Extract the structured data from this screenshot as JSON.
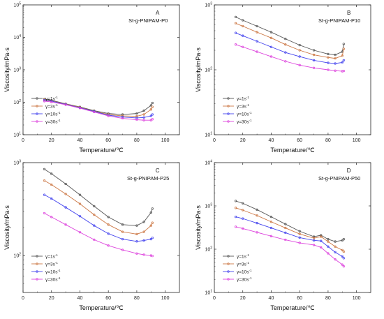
{
  "chart_data": [
    {
      "type": "line",
      "panel_letter": "A",
      "title": "St-g-PNIPAM-P0",
      "xlabel": "Temperature/℃",
      "ylabel": "Viscosity/mPa·s",
      "yscale": "log",
      "xlim": [
        0,
        110
      ],
      "ylim": [
        10,
        100000
      ],
      "xticks": [
        "0",
        "20",
        "40",
        "60",
        "80",
        "100"
      ],
      "yticks": [
        {
          "value": 10,
          "base": "10",
          "exp": "1"
        },
        {
          "value": 100,
          "base": "10",
          "exp": "2"
        },
        {
          "value": 1000,
          "base": "10",
          "exp": "3"
        },
        {
          "value": 10000,
          "base": "10",
          "exp": "4"
        },
        {
          "value": 100000,
          "base": "10",
          "exp": "5"
        }
      ],
      "legend_position": "bottom-left",
      "x": [
        15,
        20,
        30,
        40,
        50,
        60,
        70,
        80,
        85,
        90,
        91
      ],
      "series": [
        {
          "name": "γ=1s",
          "color": "#555555",
          "values": [
            125,
            115,
            90,
            72,
            55,
            45,
            42,
            45,
            55,
            80,
            95
          ]
        },
        {
          "name": "γ=3s",
          "color": "#cc7744",
          "values": [
            120,
            110,
            88,
            70,
            53,
            42,
            38,
            37,
            42,
            60,
            72
          ]
        },
        {
          "name": "γ=10s",
          "color": "#4444ee",
          "values": [
            115,
            108,
            86,
            68,
            52,
            40,
            35,
            33,
            34,
            38,
            42
          ]
        },
        {
          "name": "γ=30s",
          "color": "#dd44dd",
          "values": [
            108,
            102,
            84,
            66,
            50,
            38,
            32,
            29,
            28,
            28,
            30
          ]
        }
      ]
    },
    {
      "type": "line",
      "panel_letter": "B",
      "title": "St-g-PNIPAM-P10",
      "xlabel": "Temperature/℃",
      "ylabel": "Viscosity/mPa·s",
      "yscale": "log",
      "xlim": [
        0,
        110
      ],
      "ylim": [
        10,
        1000
      ],
      "xticks": [
        "0",
        "20",
        "40",
        "60",
        "80",
        "100"
      ],
      "yticks": [
        {
          "value": 10,
          "base": "10",
          "exp": "1"
        },
        {
          "value": 100,
          "base": "10",
          "exp": "2"
        },
        {
          "value": 1000,
          "base": "10",
          "exp": "3"
        }
      ],
      "legend_position": "bottom-left",
      "x": [
        15,
        20,
        30,
        40,
        50,
        60,
        70,
        80,
        85,
        90,
        91
      ],
      "series": [
        {
          "name": "γ=1s",
          "color": "#555555",
          "values": [
            650,
            580,
            470,
            380,
            300,
            240,
            200,
            175,
            170,
            190,
            250
          ]
        },
        {
          "name": "γ=3s",
          "color": "#cc7744",
          "values": [
            520,
            470,
            380,
            310,
            245,
            200,
            170,
            155,
            150,
            165,
            210
          ]
        },
        {
          "name": "γ=10s",
          "color": "#4444ee",
          "values": [
            370,
            335,
            275,
            225,
            185,
            160,
            140,
            128,
            125,
            130,
            140
          ]
        },
        {
          "name": "γ=30s",
          "color": "#dd44dd",
          "values": [
            245,
            225,
            190,
            160,
            135,
            118,
            107,
            100,
            97,
            95,
            96
          ]
        }
      ]
    },
    {
      "type": "line",
      "panel_letter": "C",
      "title": "St-g-PNIPAM-P25",
      "xlabel": "Temperature/℃",
      "ylabel": "Viscosity/mPa·s",
      "yscale": "log",
      "xlim": [
        0,
        110
      ],
      "ylim": [
        40,
        1000
      ],
      "xticks": [
        "0",
        "20",
        "40",
        "60",
        "80",
        "100"
      ],
      "yticks": [
        {
          "value": 100,
          "base": "10",
          "exp": "2"
        },
        {
          "value": 1000,
          "base": "10",
          "exp": "3"
        }
      ],
      "legend_position": "bottom-left",
      "x": [
        15,
        20,
        30,
        40,
        50,
        60,
        70,
        80,
        85,
        90,
        91
      ],
      "series": [
        {
          "name": "γ=1s",
          "color": "#555555",
          "values": [
            850,
            760,
            590,
            450,
            340,
            260,
            215,
            210,
            230,
            290,
            320
          ]
        },
        {
          "name": "γ=3s",
          "color": "#cc7744",
          "values": [
            640,
            580,
            460,
            360,
            275,
            215,
            180,
            170,
            180,
            210,
            225
          ]
        },
        {
          "name": "γ=10s",
          "color": "#4444ee",
          "values": [
            450,
            410,
            330,
            265,
            210,
            172,
            150,
            142,
            145,
            150,
            155
          ]
        },
        {
          "name": "γ=30s",
          "color": "#dd44dd",
          "values": [
            285,
            260,
            215,
            178,
            148,
            128,
            115,
            105,
            102,
            100,
            99
          ]
        }
      ]
    },
    {
      "type": "line",
      "panel_letter": "D",
      "title": "St-g-PNIPAM-P50",
      "xlabel": "Temperature/℃",
      "ylabel": "Viscosity/mPa·s",
      "yscale": "log",
      "xlim": [
        0,
        110
      ],
      "ylim": [
        10,
        10000
      ],
      "xticks": [
        "0",
        "20",
        "40",
        "60",
        "80",
        "100"
      ],
      "yticks": [
        {
          "value": 10,
          "base": "10",
          "exp": "1"
        },
        {
          "value": 100,
          "base": "10",
          "exp": "2"
        },
        {
          "value": 1000,
          "base": "10",
          "exp": "3"
        },
        {
          "value": 10000,
          "base": "10",
          "exp": "4"
        }
      ],
      "legend_position": "bottom-left",
      "x": [
        15,
        20,
        30,
        40,
        50,
        60,
        70,
        75,
        80,
        85,
        90,
        91
      ],
      "series": [
        {
          "name": "γ=1s",
          "color": "#555555",
          "values": [
            1300,
            1150,
            820,
            560,
            380,
            260,
            195,
            210,
            170,
            150,
            160,
            170
          ]
        },
        {
          "name": "γ=3s",
          "color": "#cc7744",
          "values": [
            900,
            800,
            600,
            430,
            310,
            225,
            180,
            195,
            150,
            115,
            95,
            88
          ]
        },
        {
          "name": "γ=10s",
          "color": "#4444ee",
          "values": [
            560,
            510,
            400,
            310,
            240,
            185,
            160,
            155,
            115,
            85,
            68,
            62
          ]
        },
        {
          "name": "γ=30s",
          "color": "#dd44dd",
          "values": [
            330,
            300,
            245,
            200,
            165,
            140,
            125,
            110,
            80,
            58,
            44,
            40
          ]
        }
      ]
    }
  ]
}
